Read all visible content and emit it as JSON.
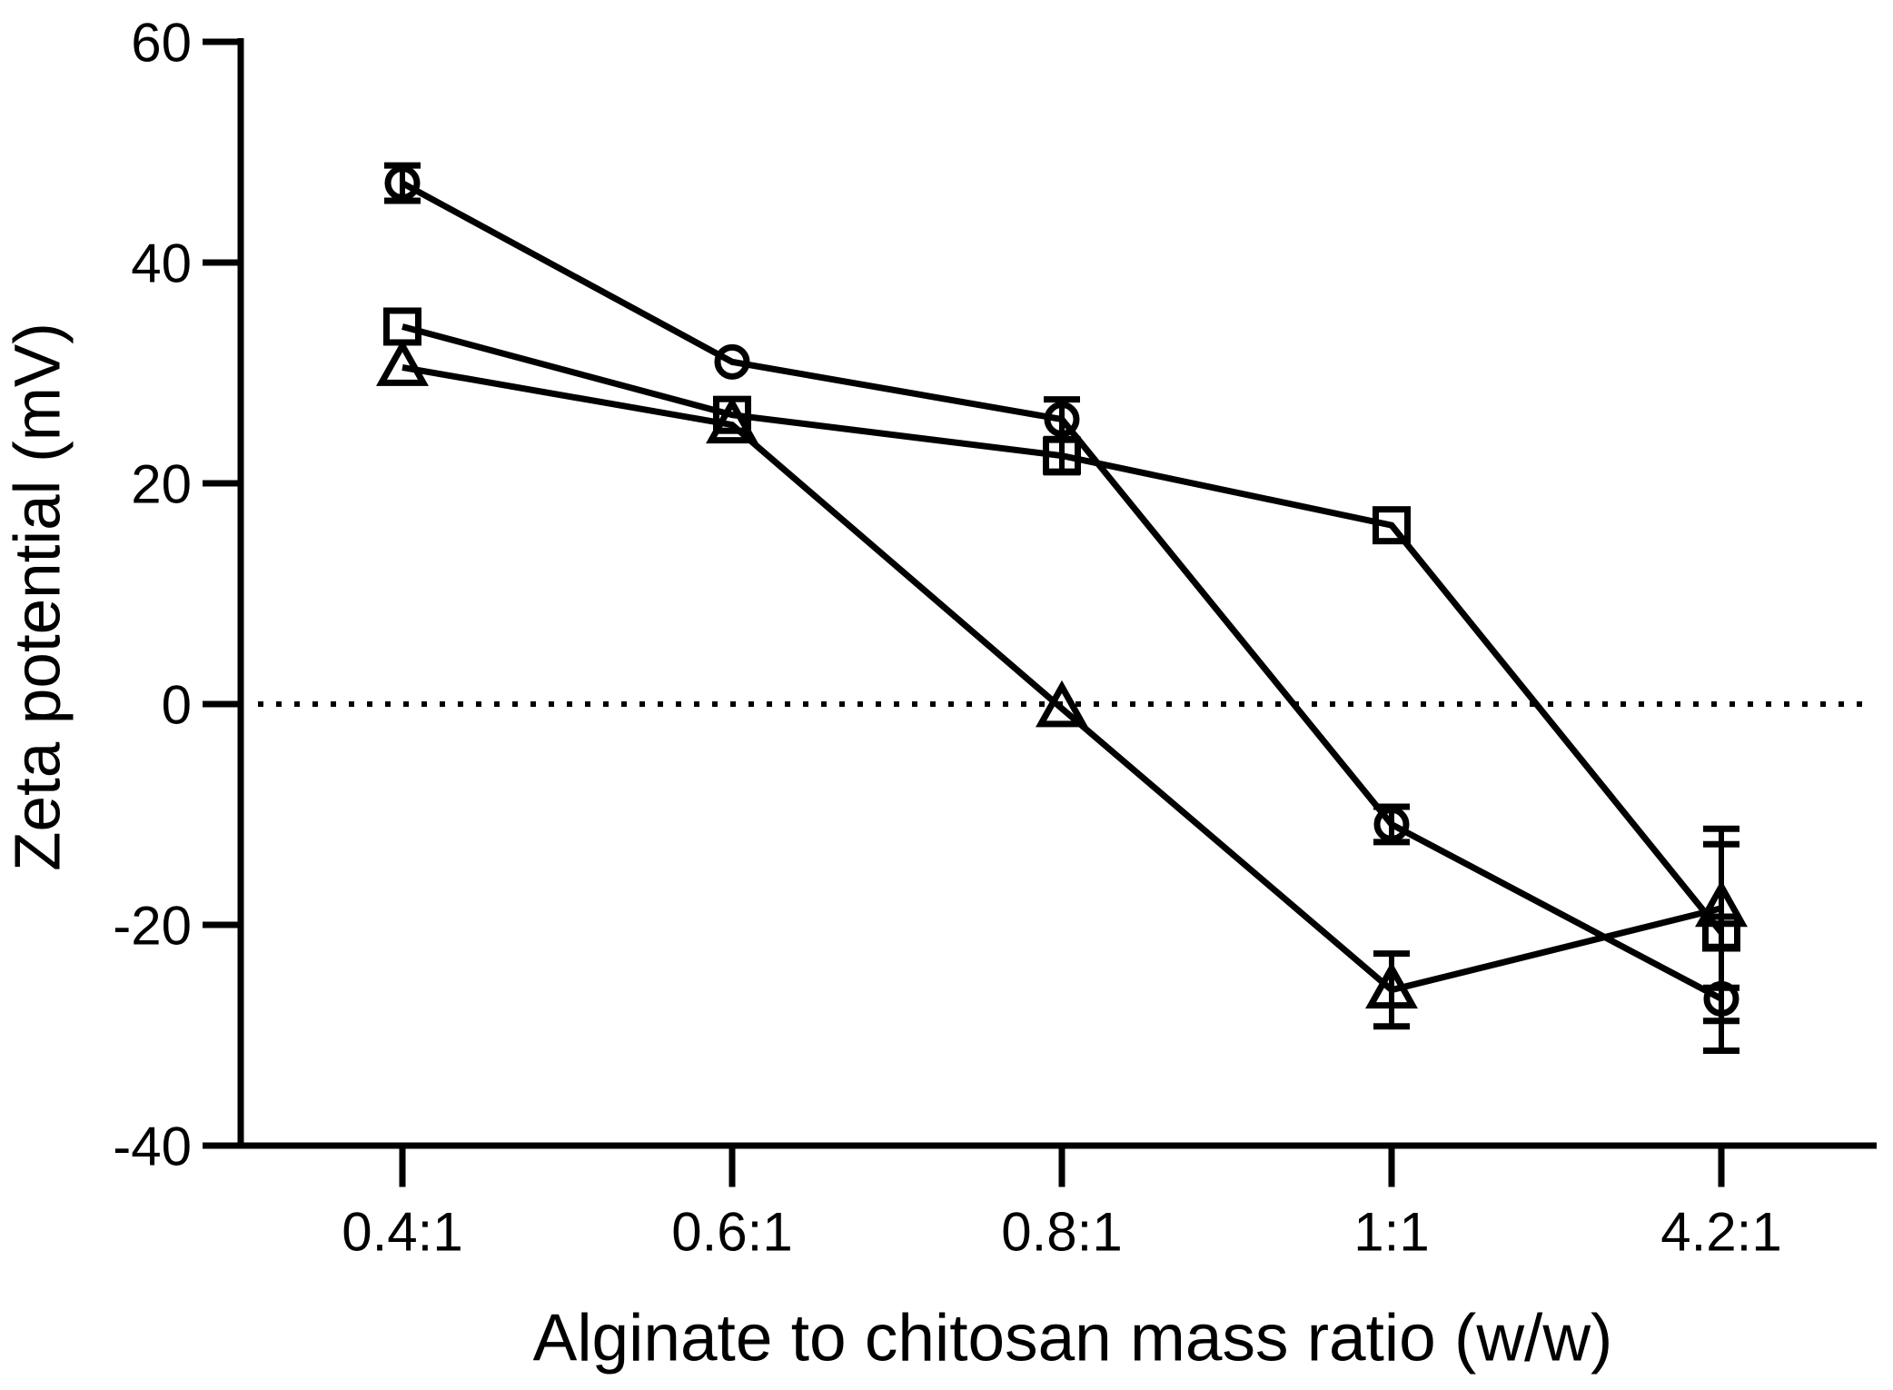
{
  "figure": {
    "background_color": "#ffffff",
    "ink_color": "#000000"
  },
  "chart_data": {
    "type": "line",
    "title": "",
    "xlabel": "Alginate to chitosan mass ratio (w/w)",
    "ylabel": "Zeta potential (mV)",
    "categories": [
      "0.4:1",
      "0.6:1",
      "0.8:1",
      "1:1",
      "4.2:1"
    ],
    "y_ticks": [
      "60",
      "40",
      "20",
      "0",
      "-20",
      "-40"
    ],
    "ylim": [
      -40,
      60
    ],
    "grid": "off",
    "legend": "none",
    "zero_line": {
      "value": 0,
      "style": "dotted"
    },
    "series": [
      {
        "marker": "circle",
        "values": [
          47.2,
          31.0,
          25.8,
          -10.9,
          -26.7
        ],
        "errors": [
          1.6,
          0,
          1.8,
          1.6,
          4.7
        ]
      },
      {
        "marker": "square",
        "values": [
          34.2,
          26.2,
          22.5,
          16.2,
          -20.7
        ],
        "errors": [
          0,
          0,
          1.5,
          0,
          8.0
        ]
      },
      {
        "marker": "triangle",
        "values": [
          30.5,
          25.3,
          -0.4,
          -25.9,
          -18.5
        ],
        "errors": [
          0,
          0,
          0,
          3.3,
          7.2
        ]
      }
    ]
  }
}
